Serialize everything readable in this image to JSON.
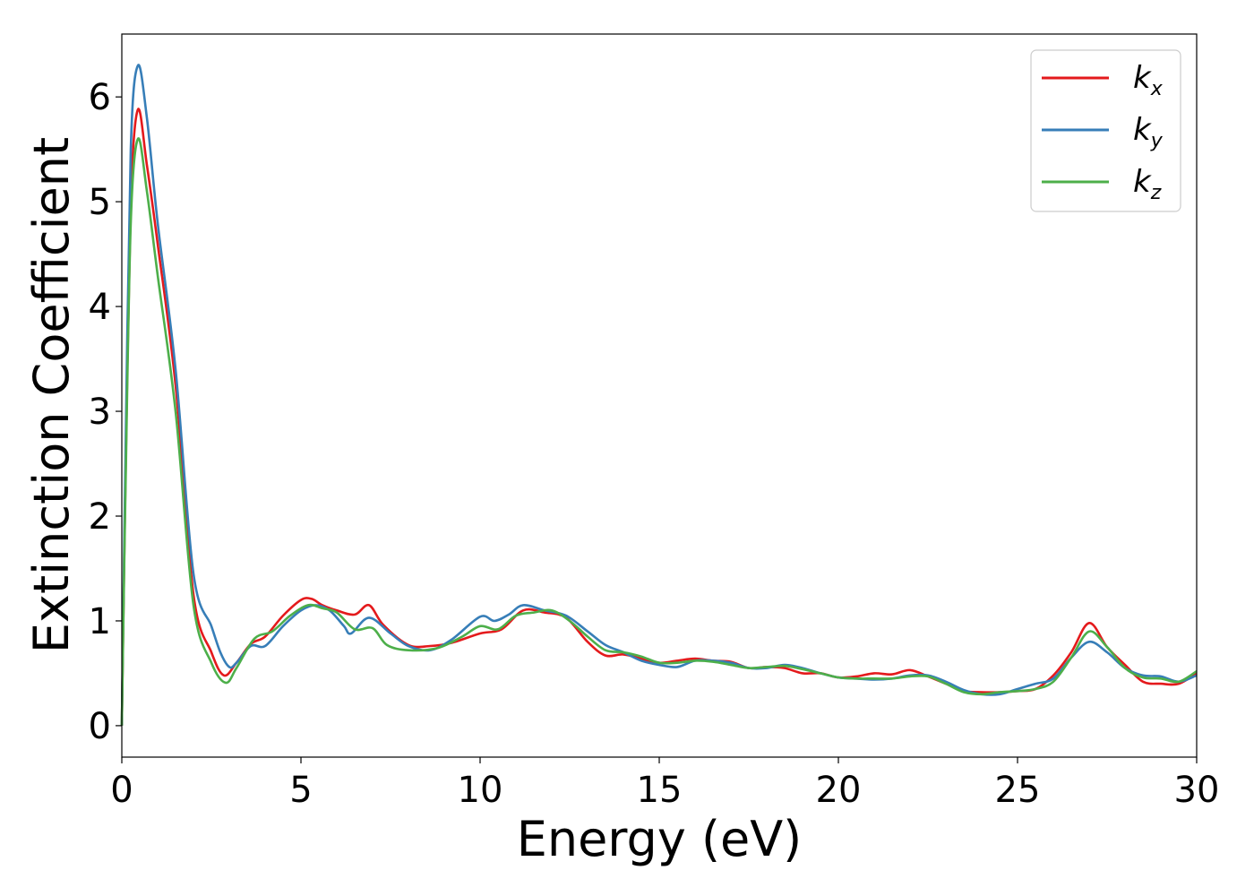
{
  "chart_data": {
    "type": "line",
    "xlabel": "Energy (eV)",
    "ylabel": "Extinction Coefficient",
    "xlim": [
      0,
      30
    ],
    "ylim": [
      -0.3,
      6.6
    ],
    "xticks": [
      0,
      5,
      10,
      15,
      20,
      25,
      30
    ],
    "xtick_labels": [
      "0",
      "5",
      "10",
      "15",
      "20",
      "25",
      "30"
    ],
    "yticks": [
      0,
      1,
      2,
      3,
      4,
      5,
      6
    ],
    "ytick_labels": [
      "0",
      "1",
      "2",
      "3",
      "4",
      "5",
      "6"
    ],
    "grid": false,
    "legend_position": "top-right",
    "series": [
      {
        "name": "k",
        "subscript": "x",
        "color": "#e41a1c",
        "x": [
          0,
          0.1,
          0.25,
          0.45,
          0.7,
          1.0,
          1.5,
          2.0,
          2.5,
          2.85,
          3.2,
          3.6,
          4.0,
          4.5,
          5.0,
          5.3,
          5.6,
          6.0,
          6.5,
          6.9,
          7.3,
          8.0,
          8.6,
          9.2,
          10.0,
          10.6,
          11.2,
          11.8,
          12.4,
          13.0,
          13.5,
          14.0,
          14.5,
          15.0,
          15.5,
          16.0,
          16.5,
          17.0,
          17.5,
          18.0,
          18.5,
          19.0,
          19.5,
          20.0,
          20.5,
          21.0,
          21.5,
          22.0,
          22.5,
          23.0,
          23.5,
          24.0,
          24.5,
          25.0,
          25.5,
          26.0,
          26.5,
          27.0,
          27.5,
          28.0,
          28.5,
          29.0,
          29.5,
          30.0
        ],
        "y": [
          0,
          2.3,
          5.0,
          5.88,
          5.35,
          4.6,
          3.25,
          1.25,
          0.7,
          0.48,
          0.6,
          0.78,
          0.85,
          1.05,
          1.2,
          1.21,
          1.15,
          1.1,
          1.06,
          1.15,
          0.96,
          0.77,
          0.76,
          0.79,
          0.88,
          0.92,
          1.1,
          1.08,
          1.03,
          0.8,
          0.67,
          0.68,
          0.64,
          0.6,
          0.62,
          0.64,
          0.62,
          0.61,
          0.55,
          0.56,
          0.55,
          0.5,
          0.5,
          0.46,
          0.47,
          0.5,
          0.49,
          0.53,
          0.47,
          0.4,
          0.33,
          0.32,
          0.32,
          0.33,
          0.35,
          0.48,
          0.7,
          0.98,
          0.75,
          0.58,
          0.42,
          0.4,
          0.4,
          0.5
        ]
      },
      {
        "name": "k",
        "subscript": "y",
        "color": "#377eb8",
        "x": [
          0,
          0.1,
          0.25,
          0.45,
          0.7,
          1.0,
          1.5,
          2.0,
          2.5,
          2.75,
          3.0,
          3.2,
          3.6,
          4.0,
          4.5,
          5.0,
          5.4,
          5.8,
          6.2,
          6.4,
          6.9,
          7.5,
          8.0,
          8.6,
          9.2,
          10.0,
          10.4,
          10.8,
          11.2,
          11.8,
          12.4,
          13.0,
          13.5,
          14.0,
          14.5,
          15.0,
          15.5,
          16.0,
          16.5,
          17.0,
          17.5,
          18.0,
          18.5,
          19.0,
          19.5,
          20.0,
          20.5,
          21.0,
          21.5,
          22.0,
          22.5,
          23.0,
          23.5,
          24.0,
          24.5,
          25.0,
          25.5,
          26.0,
          26.5,
          27.0,
          27.5,
          28.0,
          28.5,
          29.0,
          29.5,
          30.0
        ],
        "y": [
          0,
          2.5,
          5.5,
          6.3,
          5.8,
          4.8,
          3.4,
          1.45,
          0.95,
          0.7,
          0.56,
          0.6,
          0.76,
          0.76,
          0.95,
          1.1,
          1.15,
          1.1,
          0.95,
          0.88,
          1.03,
          0.88,
          0.76,
          0.72,
          0.82,
          1.04,
          1.0,
          1.06,
          1.15,
          1.1,
          1.05,
          0.9,
          0.77,
          0.7,
          0.62,
          0.58,
          0.56,
          0.62,
          0.62,
          0.6,
          0.55,
          0.55,
          0.58,
          0.55,
          0.5,
          0.46,
          0.45,
          0.44,
          0.45,
          0.48,
          0.48,
          0.42,
          0.34,
          0.3,
          0.3,
          0.35,
          0.4,
          0.45,
          0.65,
          0.8,
          0.7,
          0.55,
          0.48,
          0.47,
          0.42,
          0.48
        ]
      },
      {
        "name": "k",
        "subscript": "z",
        "color": "#4daf4a",
        "x": [
          0,
          0.1,
          0.25,
          0.45,
          0.7,
          1.0,
          1.5,
          2.0,
          2.5,
          2.9,
          3.2,
          3.7,
          4.2,
          4.7,
          5.2,
          5.6,
          6.0,
          6.5,
          7.0,
          7.4,
          8.0,
          8.8,
          9.5,
          10.0,
          10.5,
          11.0,
          11.5,
          12.0,
          12.5,
          13.0,
          13.5,
          14.0,
          14.5,
          15.0,
          15.5,
          16.0,
          16.5,
          17.0,
          17.5,
          18.0,
          18.5,
          19.0,
          19.5,
          20.0,
          20.5,
          21.0,
          21.5,
          22.0,
          22.5,
          23.0,
          23.5,
          24.0,
          24.5,
          25.0,
          25.5,
          26.0,
          26.5,
          27.0,
          27.5,
          28.0,
          28.5,
          29.0,
          29.5,
          30.0
        ],
        "y": [
          0,
          2.2,
          4.8,
          5.6,
          5.1,
          4.3,
          3.0,
          1.15,
          0.6,
          0.41,
          0.55,
          0.83,
          0.9,
          1.05,
          1.15,
          1.12,
          1.08,
          0.92,
          0.93,
          0.77,
          0.72,
          0.74,
          0.85,
          0.95,
          0.92,
          1.05,
          1.08,
          1.1,
          1.0,
          0.85,
          0.72,
          0.7,
          0.66,
          0.6,
          0.6,
          0.62,
          0.61,
          0.58,
          0.55,
          0.56,
          0.57,
          0.54,
          0.5,
          0.46,
          0.45,
          0.45,
          0.45,
          0.47,
          0.47,
          0.4,
          0.32,
          0.3,
          0.32,
          0.33,
          0.35,
          0.42,
          0.65,
          0.9,
          0.75,
          0.55,
          0.46,
          0.45,
          0.42,
          0.52
        ]
      }
    ]
  }
}
